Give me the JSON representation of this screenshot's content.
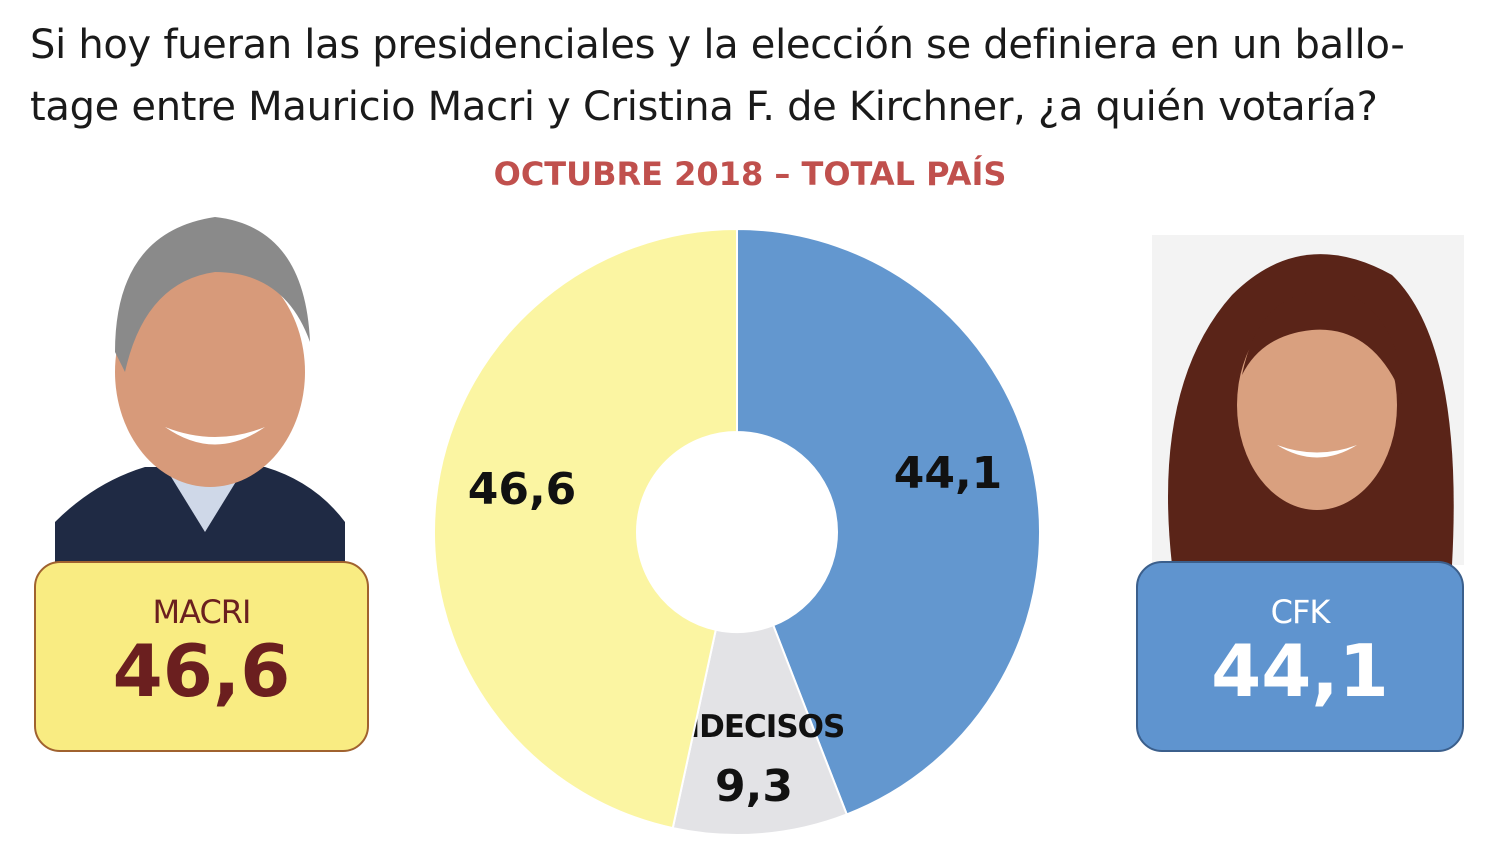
{
  "title": "Si hoy fueran las presidenciales y la elección se definiera en un ballo-tage entre Mauricio Macri y Cristina F. de Kirchner, ¿a quién votaría?",
  "subtitle": "OCTUBRE 2018 – TOTAL PAÍS",
  "candidates": {
    "macri": {
      "name": "MACRI",
      "value": "46,6"
    },
    "cfk": {
      "name": "CFK",
      "value": "44,1"
    }
  },
  "chart_data": {
    "type": "pie",
    "donut": true,
    "start": "top, clockwise",
    "slices": [
      {
        "label": "",
        "value": 44.1,
        "display": "44,1",
        "color": "#6397CF"
      },
      {
        "label": "INDECISOS",
        "value": 9.3,
        "display": "9,3",
        "color": "#E3E3E6"
      },
      {
        "label": "",
        "value": 46.6,
        "display": "46,6",
        "color": "#FBF5A2"
      }
    ]
  }
}
